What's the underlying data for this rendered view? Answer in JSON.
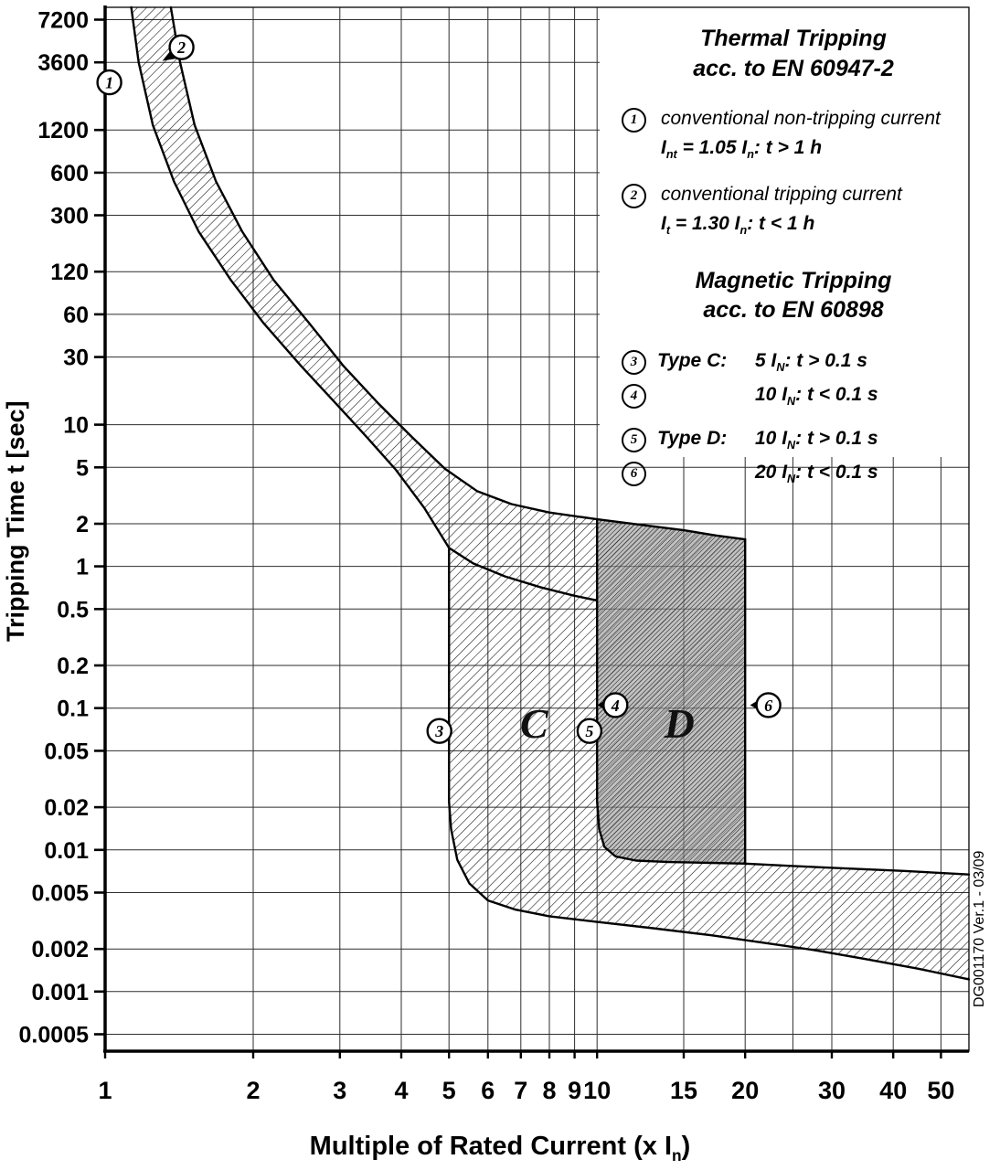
{
  "meta": {
    "side_note": "DG001170 Ver.1 - 03/09"
  },
  "axes": {
    "x_title": "Multiple of Rated Current (x I~n~)",
    "y_title": "Tripping Time t [sec]"
  },
  "legend": {
    "thermal_title": "Thermal Tripping",
    "thermal_subtitle": "acc. to EN 60947-2",
    "items_thermal": [
      {
        "num": "1",
        "line1": "conventional non-tripping current",
        "line2": "I~nt~ = 1.05 I~n~:  t > 1 h"
      },
      {
        "num": "2",
        "line1": "conventional tripping current",
        "line2": "I~t~ = 1.30 I~n~:  t < 1 h"
      }
    ],
    "magnetic_title": "Magnetic Tripping",
    "magnetic_subtitle": "acc. to EN 60898",
    "items_magnetic": [
      {
        "num": "3",
        "type": "Type C:",
        "value": "5 I~N~:  t > 0.1 s"
      },
      {
        "num": "4",
        "type": "",
        "value": "10 I~N~:  t < 0.1 s"
      },
      {
        "num": "5",
        "type": "Type D:",
        "value": "10 I~N~:  t > 0.1 s"
      },
      {
        "num": "6",
        "type": "",
        "value": "20 I~N~:  t < 0.1 s"
      }
    ]
  },
  "chart_data": {
    "type": "line",
    "title": "",
    "xlabel": "Multiple of Rated Current (x In)",
    "ylabel": "Tripping Time t [sec]",
    "x_scale": "log",
    "y_scale": "log",
    "xlim": [
      1,
      57
    ],
    "ylim": [
      0.00038,
      8800
    ],
    "grid": true,
    "x_ticks": [
      1,
      2,
      3,
      4,
      5,
      6,
      7,
      8,
      9,
      10,
      15,
      20,
      30,
      40,
      50
    ],
    "x_grid": [
      2,
      3,
      4,
      5,
      6,
      7,
      8,
      9,
      10,
      15,
      20,
      25,
      30,
      40,
      50
    ],
    "y_ticks": [
      7200,
      3600,
      1200,
      600,
      300,
      120,
      60,
      30,
      10,
      5,
      2,
      1,
      0.5,
      0.2,
      0.1,
      0.05,
      0.02,
      0.01,
      0.005,
      0.002,
      0.001,
      0.0005
    ],
    "series": [
      {
        "name": "thermal-non-tripping-1.05In",
        "points": [
          [
            1.13,
            8800
          ],
          [
            1.17,
            3600
          ],
          [
            1.25,
            1300
          ],
          [
            1.38,
            520
          ],
          [
            1.55,
            230
          ],
          [
            1.8,
            105
          ],
          [
            2.1,
            52
          ],
          [
            2.5,
            26
          ],
          [
            2.95,
            14
          ],
          [
            3.4,
            8.2
          ],
          [
            3.9,
            4.8
          ],
          [
            4.45,
            2.6
          ],
          [
            5.0,
            1.35
          ],
          [
            5.6,
            1.05
          ],
          [
            6.5,
            0.85
          ],
          [
            7.7,
            0.71
          ],
          [
            9.0,
            0.62
          ],
          [
            10.0,
            0.575
          ]
        ]
      },
      {
        "name": "thermal-tripping-1.30In",
        "points": [
          [
            1.36,
            8800
          ],
          [
            1.42,
            3600
          ],
          [
            1.52,
            1300
          ],
          [
            1.68,
            520
          ],
          [
            1.9,
            230
          ],
          [
            2.2,
            105
          ],
          [
            2.6,
            52
          ],
          [
            3.05,
            26
          ],
          [
            3.6,
            14
          ],
          [
            4.2,
            8.2
          ],
          [
            4.9,
            4.9
          ],
          [
            5.7,
            3.4
          ],
          [
            6.7,
            2.75
          ],
          [
            8.0,
            2.4
          ],
          [
            10.0,
            2.15
          ],
          [
            12.5,
            1.95
          ],
          [
            15.0,
            1.8
          ],
          [
            17.5,
            1.65
          ],
          [
            20.0,
            1.55
          ]
        ]
      },
      {
        "name": "type-C-magnetic-5In",
        "points": [
          [
            5,
            1.35
          ],
          [
            5,
            0.022
          ],
          [
            5.05,
            0.014
          ],
          [
            5.2,
            0.0085
          ],
          [
            5.5,
            0.0058
          ],
          [
            6.0,
            0.0044
          ],
          [
            6.8,
            0.0038
          ],
          [
            8,
            0.0034
          ],
          [
            10,
            0.0031
          ],
          [
            13,
            0.0028
          ],
          [
            17,
            0.0025
          ],
          [
            22,
            0.0022
          ],
          [
            28,
            0.00195
          ],
          [
            35,
            0.0017
          ],
          [
            45,
            0.00145
          ],
          [
            57,
            0.00122
          ]
        ]
      },
      {
        "name": "type-D-magnetic-10In",
        "points": [
          [
            10,
            2.15
          ],
          [
            10,
            0.022
          ],
          [
            10.1,
            0.014
          ],
          [
            10.35,
            0.0105
          ],
          [
            10.9,
            0.009
          ],
          [
            12,
            0.0084
          ],
          [
            14,
            0.0082
          ],
          [
            17,
            0.0081
          ],
          [
            20,
            0.008
          ],
          [
            25,
            0.0077
          ],
          [
            32,
            0.0074
          ],
          [
            42,
            0.0071
          ],
          [
            57,
            0.0067
          ]
        ]
      },
      {
        "name": "type-D-magnetic-20In",
        "points": [
          [
            20,
            1.55
          ],
          [
            20,
            0.008
          ]
        ]
      }
    ],
    "regions": [
      {
        "name": "thermal-band-and-type-C",
        "style": "hatch-light",
        "points": [
          [
            1.36,
            8800
          ],
          [
            1.42,
            3600
          ],
          [
            1.52,
            1300
          ],
          [
            1.68,
            520
          ],
          [
            1.9,
            230
          ],
          [
            2.2,
            105
          ],
          [
            2.6,
            52
          ],
          [
            3.05,
            26
          ],
          [
            3.6,
            14
          ],
          [
            4.2,
            8.2
          ],
          [
            4.9,
            4.9
          ],
          [
            5.7,
            3.4
          ],
          [
            6.7,
            2.75
          ],
          [
            8.0,
            2.4
          ],
          [
            10.0,
            2.15
          ],
          [
            12.5,
            1.95
          ],
          [
            15.0,
            1.8
          ],
          [
            17.5,
            1.65
          ],
          [
            20.0,
            1.55
          ],
          [
            20,
            0.008
          ],
          [
            25,
            0.0077
          ],
          [
            32,
            0.0074
          ],
          [
            42,
            0.0071
          ],
          [
            57,
            0.0067
          ],
          [
            57,
            0.00122
          ],
          [
            45,
            0.00145
          ],
          [
            35,
            0.0017
          ],
          [
            28,
            0.00195
          ],
          [
            22,
            0.0022
          ],
          [
            17,
            0.0025
          ],
          [
            13,
            0.0028
          ],
          [
            10,
            0.0031
          ],
          [
            8,
            0.0034
          ],
          [
            6.8,
            0.0038
          ],
          [
            6.0,
            0.0044
          ],
          [
            5.5,
            0.0058
          ],
          [
            5.2,
            0.0085
          ],
          [
            5.05,
            0.014
          ],
          [
            5.0,
            0.022
          ],
          [
            5.0,
            1.35
          ],
          [
            4.45,
            2.6
          ],
          [
            3.9,
            4.8
          ],
          [
            3.4,
            8.2
          ],
          [
            2.95,
            14
          ],
          [
            2.5,
            26
          ],
          [
            2.1,
            52
          ],
          [
            1.8,
            105
          ],
          [
            1.55,
            230
          ],
          [
            1.38,
            520
          ],
          [
            1.25,
            1300
          ],
          [
            1.17,
            3600
          ],
          [
            1.13,
            8800
          ]
        ]
      },
      {
        "name": "type-D-band",
        "style": "hatch-dark",
        "points": [
          [
            10,
            2.15
          ],
          [
            12.5,
            1.95
          ],
          [
            15,
            1.8
          ],
          [
            17.5,
            1.65
          ],
          [
            20,
            1.55
          ],
          [
            20,
            0.008
          ],
          [
            17,
            0.0081
          ],
          [
            14,
            0.0082
          ],
          [
            12,
            0.0084
          ],
          [
            10.9,
            0.009
          ],
          [
            10.35,
            0.0105
          ],
          [
            10.1,
            0.014
          ],
          [
            10,
            0.022
          ]
        ]
      }
    ],
    "region_labels": [
      {
        "text": "C",
        "x": 7.45,
        "t": 0.062
      },
      {
        "text": "D",
        "x": 14.7,
        "t": 0.062
      }
    ],
    "markers": [
      {
        "num": "1",
        "x": 1.02,
        "t": 2600
      },
      {
        "num": "2",
        "x": 1.43,
        "t": 4600,
        "arrow": "left-down"
      },
      {
        "num": "3",
        "x": 4.78,
        "t": 0.069
      },
      {
        "num": "4",
        "x": 10.9,
        "t": 0.105,
        "arrow": "left"
      },
      {
        "num": "5",
        "x": 9.65,
        "t": 0.069
      },
      {
        "num": "6",
        "x": 22.3,
        "t": 0.105,
        "arrow": "left"
      }
    ]
  }
}
